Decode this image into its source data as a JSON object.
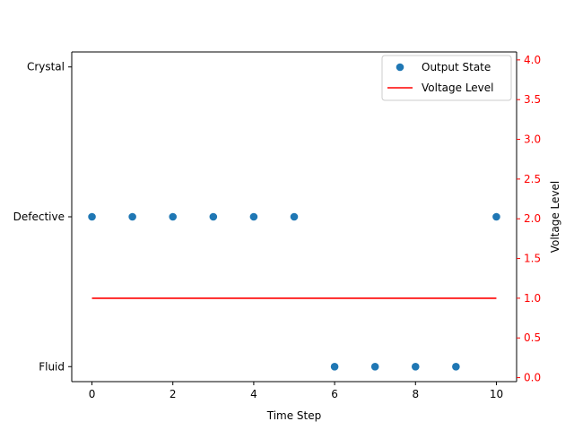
{
  "chart_data": {
    "type": "scatter",
    "title": "",
    "xlabel": "Time Step",
    "ylabel_left": "",
    "ylabel_right": "Voltage Level",
    "xlim": [
      -0.5,
      10.5
    ],
    "xticks": [
      0,
      2,
      4,
      6,
      8,
      10
    ],
    "left_axis": {
      "categories": [
        "Fluid",
        "Defective",
        "Crystal"
      ],
      "values": [
        0,
        1,
        2
      ],
      "range": [
        -0.1,
        2.1
      ]
    },
    "right_axis": {
      "range": [
        -0.05,
        4.1
      ],
      "ticks": [
        0.0,
        0.5,
        1.0,
        1.5,
        2.0,
        2.5,
        3.0,
        3.5,
        4.0
      ],
      "tick_labels": [
        "0.0",
        "0.5",
        "1.0",
        "1.5",
        "2.0",
        "2.5",
        "3.0",
        "3.5",
        "4.0"
      ],
      "color": "#ff0000"
    },
    "series": [
      {
        "name": "Output State",
        "kind": "scatter",
        "axis": "left",
        "color": "#1f77b4",
        "x": [
          0,
          1,
          2,
          3,
          4,
          5,
          6,
          7,
          8,
          9,
          10
        ],
        "y": [
          1,
          1,
          1,
          1,
          1,
          1,
          0,
          0,
          0,
          0,
          1
        ],
        "y_labels": [
          "Defective",
          "Defective",
          "Defective",
          "Defective",
          "Defective",
          "Defective",
          "Fluid",
          "Fluid",
          "Fluid",
          "Fluid",
          "Defective"
        ]
      },
      {
        "name": "Voltage Level",
        "kind": "line",
        "axis": "right",
        "color": "#ff0000",
        "x": [
          0,
          1,
          2,
          3,
          4,
          5,
          6,
          7,
          8,
          9,
          10
        ],
        "y": [
          1.0,
          1.0,
          1.0,
          1.0,
          1.0,
          1.0,
          1.0,
          1.0,
          1.0,
          1.0,
          1.0
        ]
      }
    ],
    "grid": false,
    "legend": "top-right"
  }
}
